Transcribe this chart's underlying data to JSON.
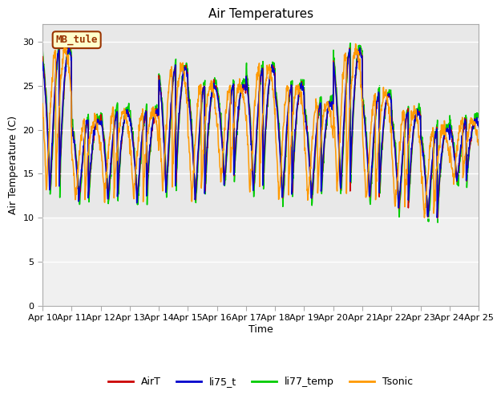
{
  "title": "Air Temperatures",
  "ylabel": "Air Temperature (C)",
  "xlabel": "Time",
  "annotation": "MB_tule",
  "ylim": [
    0,
    32
  ],
  "yticks": [
    0,
    5,
    10,
    15,
    20,
    25,
    30
  ],
  "colors": {
    "AirT": "#cc0000",
    "li75_t": "#0000cc",
    "li77_temp": "#00cc00",
    "Tsonic": "#ff9900"
  },
  "legend_labels": [
    "AirT",
    "li75_t",
    "li77_temp",
    "Tsonic"
  ],
  "plot_bg_color": "#e8e8e8",
  "lower_bg_color": "#f0f0f0",
  "annotation_bg": "#ffffcc",
  "annotation_border": "#993300",
  "n_days": 15,
  "start_day": 10,
  "peaks": [
    29,
    21,
    22,
    22,
    27,
    25,
    25,
    27,
    25,
    23,
    29,
    24,
    22,
    20,
    21
  ],
  "valleys": [
    13,
    12,
    12,
    12,
    13,
    12,
    14,
    13,
    12,
    12,
    13,
    12,
    11,
    10,
    14
  ],
  "tsonic_lag_hours": 3
}
